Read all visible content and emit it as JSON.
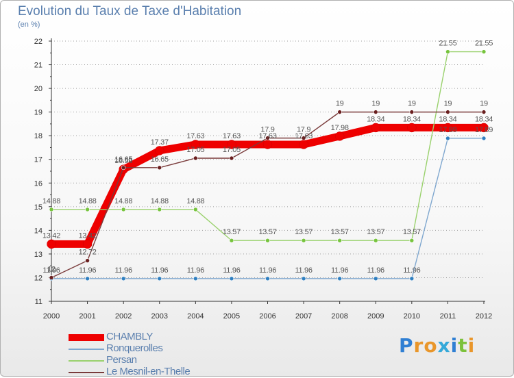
{
  "colors": {
    "title": "#5a7fae",
    "axis": "#333333",
    "gridline": "#9e9e9e"
  },
  "logo": {
    "text": "Proxiti",
    "letter_colors": [
      "#2f7fd3",
      "#e9962a",
      "#e9962a",
      "#35a9d9",
      "#2f7fd3",
      "#7cc13b",
      "#e9962a"
    ]
  },
  "chart_data": {
    "type": "line",
    "title": "Evolution du Taux de Taxe d'Habitation",
    "ylabel": "(en %)",
    "xlabel": "",
    "ylim": [
      11,
      22
    ],
    "yticks": [
      "11",
      "12",
      "13",
      "14",
      "15",
      "16",
      "17",
      "18",
      "19",
      "20",
      "21",
      "22"
    ],
    "categories": [
      "2000",
      "2001",
      "2002",
      "2003",
      "2004",
      "2005",
      "2006",
      "2007",
      "2008",
      "2009",
      "2010",
      "2011",
      "2012"
    ],
    "grid": "horizontal-dotted",
    "legend_position": "bottom-left",
    "series": [
      {
        "name": "CHAMBLY",
        "color": "#ee0000",
        "marker_color": "#ee0000",
        "weight": "thick",
        "values": [
          13.42,
          13.42,
          16.58,
          17.37,
          17.63,
          17.63,
          17.63,
          17.63,
          17.98,
          18.34,
          18.34,
          18.34,
          18.34
        ],
        "labels": [
          "13.42",
          "13.42",
          "16.58",
          "17.37",
          "17.63",
          "17.63",
          "17.63",
          "17.63",
          "17.98",
          "18.34",
          "18.34",
          "18.34",
          "18.34"
        ]
      },
      {
        "name": "Ronquerolles",
        "color": "#7fa7cf",
        "marker_color": "#2f7fc0",
        "weight": "thin",
        "values": [
          11.96,
          11.96,
          11.96,
          11.96,
          11.96,
          11.96,
          11.96,
          11.96,
          11.96,
          11.96,
          11.96,
          17.89,
          17.89
        ],
        "labels": [
          "11.96",
          "11.96",
          "11.96",
          "11.96",
          "11.96",
          "11.96",
          "11.96",
          "11.96",
          "11.96",
          "11.96",
          "11.96",
          "17.89",
          "17.89"
        ]
      },
      {
        "name": "Persan",
        "color": "#99d16c",
        "marker_color": "#77c43e",
        "weight": "thin",
        "values": [
          14.88,
          14.88,
          14.88,
          14.88,
          14.88,
          13.57,
          13.57,
          13.57,
          13.57,
          13.57,
          13.57,
          21.55,
          21.55
        ],
        "labels": [
          "14.88",
          "14.88",
          "14.88",
          "14.88",
          "14.88",
          "13.57",
          "13.57",
          "13.57",
          "13.57",
          "13.57",
          "13.57",
          "21.55",
          "21.55"
        ]
      },
      {
        "name": "Le Mesnil-en-Thelle",
        "color": "#7a3b3b",
        "marker_color": "#6a1f1f",
        "weight": "thin",
        "values": [
          12,
          12.72,
          16.65,
          16.65,
          17.05,
          17.05,
          17.9,
          17.9,
          19,
          19,
          19,
          19,
          19
        ],
        "labels": [
          "12",
          "12.72",
          "16.65",
          "16.65",
          "17.05",
          "17.05",
          "17.9",
          "17.9",
          "19",
          "19",
          "19",
          "19",
          "19"
        ]
      }
    ]
  }
}
